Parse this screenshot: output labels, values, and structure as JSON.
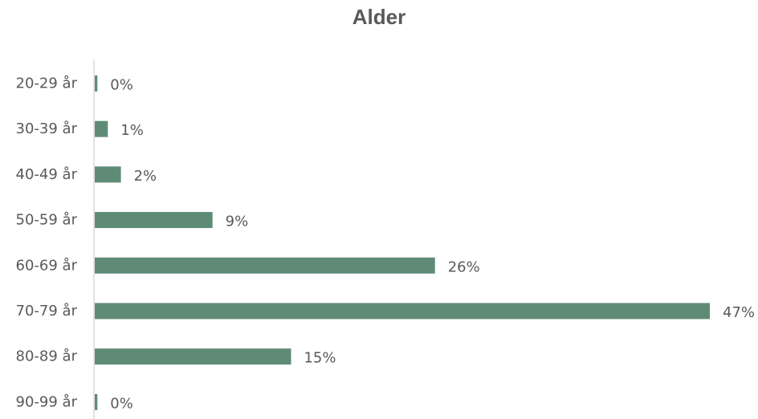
{
  "chart_data": {
    "type": "bar",
    "orientation": "horizontal",
    "title": "Alder",
    "xlabel": "",
    "ylabel": "",
    "categories": [
      "20-29 år",
      "30-39 år",
      "40-49 år",
      "50-59 år",
      "60-69 år",
      "70-79 år",
      "80-89 år",
      "90-99 år"
    ],
    "values": [
      0.2,
      1,
      2,
      9,
      26,
      47,
      15,
      0.2
    ],
    "value_labels": [
      "0%",
      "1%",
      "2%",
      "9%",
      "26%",
      "47%",
      "15%",
      "0%"
    ],
    "xlim": [
      0,
      47
    ],
    "grid": false,
    "legend": "none",
    "bar_color": "#5f8b76",
    "axis_color": "#d9d9d9",
    "text_color": "#595959"
  }
}
